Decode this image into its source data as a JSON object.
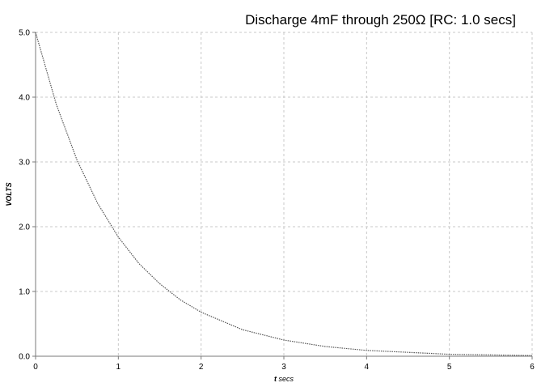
{
  "chart_data": {
    "type": "line",
    "title": "Discharge 4mF through 250Ω [RC: 1.0 secs]",
    "xlabel_main": "t",
    "xlabel_unit": "secs",
    "ylabel": "VOLTS",
    "xlim": [
      0,
      6
    ],
    "ylim": [
      0,
      5
    ],
    "xticks": [
      "0",
      "1",
      "2",
      "3",
      "4",
      "5",
      "6"
    ],
    "yticks": [
      "0.0",
      "1.0",
      "2.0",
      "3.0",
      "4.0",
      "5.0"
    ],
    "grid": true,
    "series": [
      {
        "x": [
          0,
          0.25,
          0.5,
          0.75,
          1,
          1.25,
          1.5,
          1.75,
          2,
          2.5,
          3,
          3.5,
          4,
          4.5,
          5,
          5.5,
          6
        ],
        "y": [
          5.0,
          3.89,
          3.03,
          2.36,
          1.84,
          1.43,
          1.12,
          0.87,
          0.68,
          0.41,
          0.25,
          0.15,
          0.09,
          0.06,
          0.03,
          0.02,
          0.01
        ]
      }
    ]
  }
}
